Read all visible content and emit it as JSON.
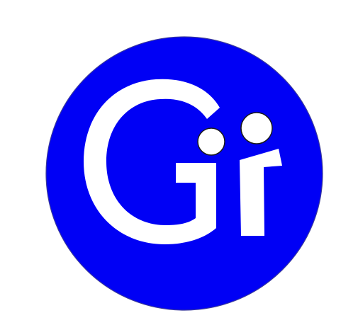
{
  "logo": {
    "text": "Gi",
    "colors": {
      "circle_fill": "#0000F5",
      "circle_stroke": "#3A3A9A",
      "glyph_fill": "#FFFFFF",
      "dot_stroke": "#1A1A1A",
      "background": "#FFFFFF"
    },
    "icon_name": "gi-logo-icon"
  }
}
